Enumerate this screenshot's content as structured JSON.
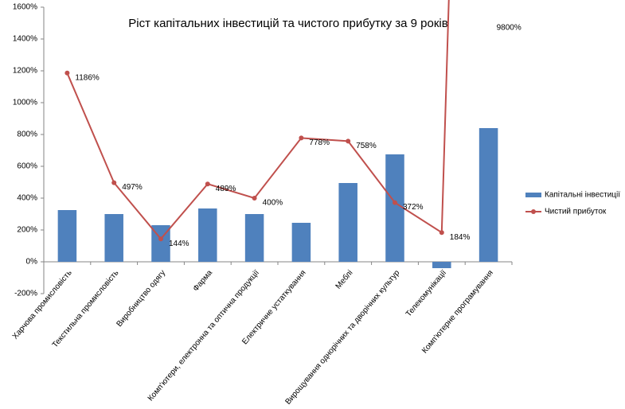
{
  "chart_data": {
    "type": "bar-line",
    "title": "Ріст капітальних інвестицій та чистого прибутку за 9 років",
    "categories": [
      "Харчова промисловість",
      "Текстильна промисловість",
      "Виробництво одягу",
      "Фарма",
      "Комп'ютери, електронна та оптична продукції",
      "Електричне устаткування",
      "Меблі",
      "Вирощування однорічних та дворічних культур",
      "Телекомунікації",
      "Комп'ютерне програмування"
    ],
    "series": [
      {
        "name": "Капітальні інвестиції",
        "type": "bar",
        "color": "#4f81bd",
        "values": [
          325,
          300,
          230,
          335,
          300,
          245,
          495,
          675,
          -40,
          840
        ]
      },
      {
        "name": "Чистий прибуток",
        "type": "line",
        "color": "#c0504d",
        "values": [
          1186,
          497,
          144,
          489,
          400,
          778,
          758,
          372,
          184,
          9800
        ],
        "value_labels": [
          "1186%",
          "497%",
          "144%",
          "489%",
          "400%",
          "778%",
          "758%",
          "372%",
          "184%",
          "9800%"
        ]
      }
    ],
    "ylim": [
      -200,
      1600
    ],
    "yticks": [
      {
        "value": -200,
        "label": "-200%"
      },
      {
        "value": 0,
        "label": "0%"
      },
      {
        "value": 200,
        "label": "200%"
      },
      {
        "value": 400,
        "label": "400%"
      },
      {
        "value": 600,
        "label": "600%"
      },
      {
        "value": 800,
        "label": "800%"
      },
      {
        "value": 1000,
        "label": "1000%"
      },
      {
        "value": 1200,
        "label": "1200%"
      },
      {
        "value": 1400,
        "label": "1400%"
      },
      {
        "value": 1600,
        "label": "1600%"
      }
    ],
    "grid": false,
    "legend": "right"
  }
}
